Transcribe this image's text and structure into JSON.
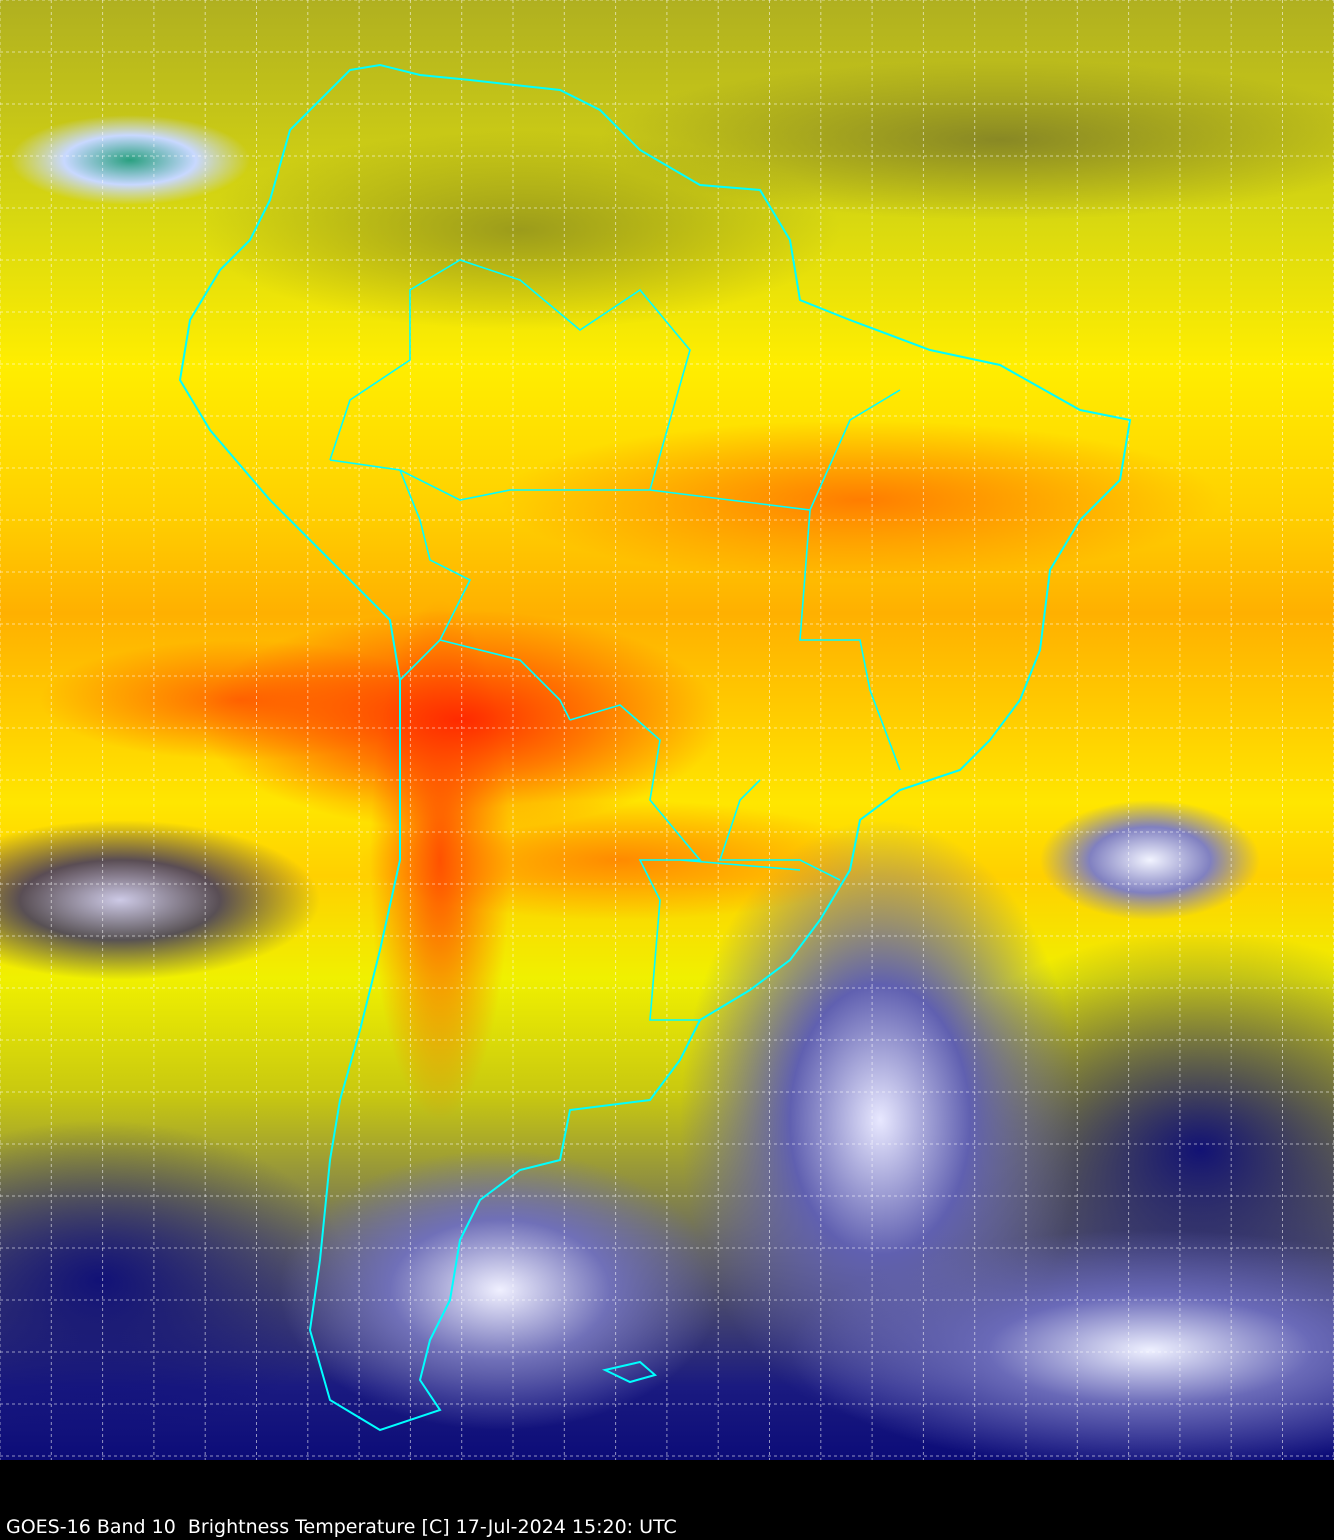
{
  "caption": "GOES-16 Band 10  Brightness Temperature [C] 17-Jul-2024 15:20: UTC",
  "colors": {
    "coastline": "#00ffff",
    "gridlines": "#ffffff",
    "background": "#000000"
  },
  "map": {
    "product": "brightness-temperature-imagery",
    "region": "South America",
    "overlays": [
      "coastlines-and-borders",
      "lat-lon-grid"
    ]
  }
}
